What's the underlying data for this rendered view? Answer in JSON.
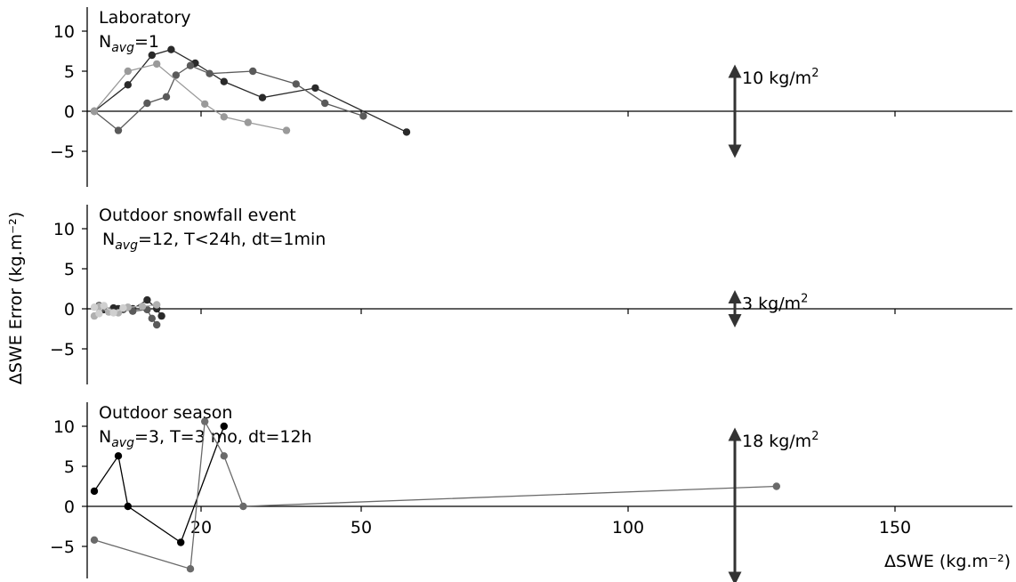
{
  "figure": {
    "ylabel": "ΔSWE Error (kg.m⁻²)",
    "xlabel": "ΔSWE  (kg.m⁻²)",
    "x_ticks": [
      20,
      50,
      100,
      150
    ],
    "y_ticks": [
      -5,
      0,
      5,
      10
    ]
  },
  "chart_data": [
    {
      "type": "line",
      "title": "Laboratory",
      "subtitle": "N_avg=1",
      "scale_bar": {
        "label": "10 kg/m²",
        "value": 10
      },
      "ylim": [
        -9,
        12
      ],
      "series": [
        {
          "color": "#2a2a2a",
          "x": [
            0,
            7,
            12,
            16,
            21,
            27,
            35,
            46,
            65
          ],
          "y": [
            0,
            3.3,
            7.0,
            7.7,
            6.0,
            3.7,
            1.7,
            2.9,
            -2.6
          ]
        },
        {
          "color": "#5a5a5a",
          "x": [
            0,
            5,
            11,
            15,
            17,
            20,
            24,
            33,
            42,
            48,
            56
          ],
          "y": [
            0,
            -2.4,
            1.0,
            1.8,
            4.5,
            5.7,
            4.7,
            5.0,
            3.4,
            1.0,
            -0.6
          ]
        },
        {
          "color": "#9a9a9a",
          "x": [
            0,
            7,
            13,
            23,
            27,
            32,
            40
          ],
          "y": [
            0,
            5.0,
            5.9,
            0.9,
            -0.7,
            -1.4,
            -2.4
          ]
        }
      ]
    },
    {
      "type": "line",
      "title": "Outdoor snowfall event",
      "subtitle": "N_avg=12, T<24h, dt=1min",
      "scale_bar": {
        "label": "3 kg/m²",
        "value": 3
      },
      "ylim": [
        -9,
        12
      ],
      "series": [
        {
          "color": "#2a2a2a",
          "x": [
            1,
            2,
            4,
            5,
            8,
            11,
            13,
            14
          ],
          "y": [
            0.4,
            -0.1,
            0.1,
            0.0,
            0.0,
            1.1,
            0.0,
            -0.9
          ]
        },
        {
          "color": "#5a5a5a",
          "x": [
            2,
            3,
            6,
            8,
            11,
            12,
            13
          ],
          "y": [
            0.1,
            -0.3,
            -0.1,
            -0.3,
            -0.1,
            -1.2,
            -2.0
          ]
        },
        {
          "color": "#b0b0b0",
          "x": [
            0,
            1,
            3,
            5,
            7,
            10,
            13
          ],
          "y": [
            -0.9,
            0.3,
            -0.4,
            -0.5,
            0.2,
            0.3,
            0.5
          ]
        },
        {
          "color": "#cfcfcf",
          "x": [
            0,
            1,
            2,
            4,
            6
          ],
          "y": [
            0.2,
            -0.6,
            0.4,
            -0.5,
            0.1
          ]
        }
      ]
    },
    {
      "type": "line",
      "title": "Outdoor season",
      "subtitle": "N_avg=3, T=3 mo, dt=12h",
      "scale_bar": {
        "label": "18 kg/m²",
        "value": 18
      },
      "ylim": [
        -9,
        12
      ],
      "series": [
        {
          "color": "#000000",
          "x": [
            0,
            5,
            7,
            18,
            27
          ],
          "y": [
            1.9,
            6.3,
            0.0,
            -4.5,
            10.0
          ]
        },
        {
          "color": "#6a6a6a",
          "x": [
            0,
            20,
            23,
            27,
            31,
            142
          ],
          "y": [
            -4.2,
            -7.8,
            10.6,
            6.3,
            0.0,
            2.5
          ]
        }
      ]
    }
  ]
}
